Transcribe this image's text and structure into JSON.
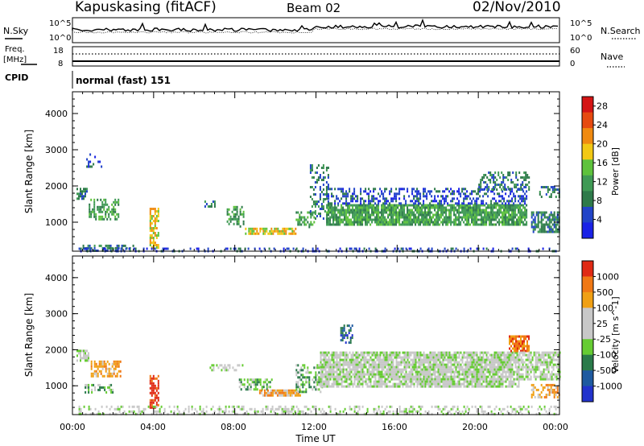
{
  "header": {
    "station": "Kapuskasing (fitACF)",
    "beam": "Beam 02",
    "date": "02/Nov/2010"
  },
  "top_panels": {
    "nsky_label": "N.Sky",
    "nsky_ticks": [
      "10^5",
      "10^0"
    ],
    "nsearch_label": "N.Search",
    "nsearch_ticks": [
      "10^5",
      "10^0"
    ],
    "freq_label": "Freq.",
    "freq_unit": "[MHz]",
    "freq_ticks": [
      "18",
      "8"
    ],
    "nave_label": "Nave",
    "nave_ticks": [
      "60",
      "0"
    ],
    "cpid_label": "CPID",
    "cpid_value": "normal (fast) 151"
  },
  "colors": {
    "power": [
      "#1a22e6",
      "#2244c8",
      "#2e7a4a",
      "#3f9a55",
      "#5ec23c",
      "#f2c814",
      "#f08a10",
      "#e64a10",
      "#d41414"
    ],
    "velocity": [
      "#2233cc",
      "#1e5aa0",
      "#2a7a4a",
      "#66cc33",
      "#c8c8c8",
      "#c8c8c8",
      "#f0a014",
      "#f07814",
      "#e02a14"
    ],
    "ground": "#b4b4b4"
  },
  "chart_data": [
    {
      "type": "heatmap",
      "name": "power",
      "ylabel": "Slant Range [km]",
      "xlabel": "Time UT",
      "xlim": [
        0,
        24
      ],
      "ylim": [
        200,
        4600
      ],
      "x_ticks": [
        "00:00",
        "04:00",
        "08:00",
        "12:00",
        "16:00",
        "20:00",
        "00:00"
      ],
      "y_ticks": [
        "1000",
        "2000",
        "3000",
        "4000"
      ],
      "colorbar_label": "Power [dB]",
      "colorbar_ticks": [
        "4",
        "8",
        "12",
        "16",
        "20",
        "24",
        "28"
      ],
      "colorbar_range": [
        0,
        30
      ],
      "regions": [
        {
          "t": [
            0.5,
            3.0
          ],
          "r": [
            200,
            380
          ],
          "level": 2,
          "density": 0.55
        },
        {
          "t": [
            0.2,
            0.7
          ],
          "r": [
            1650,
            1950
          ],
          "level": 2,
          "density": 0.6
        },
        {
          "t": [
            0.8,
            2.3
          ],
          "r": [
            1050,
            1650
          ],
          "level": 3,
          "density": 0.55
        },
        {
          "t": [
            0.6,
            1.4
          ],
          "r": [
            2500,
            2900
          ],
          "level": 1,
          "density": 0.25
        },
        {
          "t": [
            3.8,
            4.2
          ],
          "r": [
            300,
            1400
          ],
          "level": 5,
          "density": 0.65
        },
        {
          "t": [
            6.5,
            7.0
          ],
          "r": [
            1400,
            1600
          ],
          "level": 2,
          "density": 0.5
        },
        {
          "t": [
            7.6,
            8.4
          ],
          "r": [
            900,
            1450
          ],
          "level": 3,
          "density": 0.5
        },
        {
          "t": [
            8.5,
            11.0
          ],
          "r": [
            650,
            850
          ],
          "level": 5,
          "density": 0.8
        },
        {
          "t": [
            11.0,
            11.9
          ],
          "r": [
            850,
            1300
          ],
          "level": 3,
          "density": 0.55
        },
        {
          "t": [
            11.7,
            12.6
          ],
          "r": [
            1100,
            2600
          ],
          "level": 2,
          "density": 0.35
        },
        {
          "t": [
            12.5,
            22.4
          ],
          "r": [
            950,
            1500
          ],
          "level": 3,
          "density": 0.85
        },
        {
          "t": [
            12.5,
            22.4
          ],
          "r": [
            1500,
            1950
          ],
          "level": 1,
          "density": 0.45
        },
        {
          "t": [
            20.0,
            22.5
          ],
          "r": [
            1900,
            2400
          ],
          "level": 2,
          "density": 0.45
        },
        {
          "t": [
            22.6,
            24.0
          ],
          "r": [
            700,
            1300
          ],
          "level": 2,
          "density": 0.7
        },
        {
          "t": [
            23.0,
            24.0
          ],
          "r": [
            1700,
            2000
          ],
          "level": 2,
          "density": 0.5
        },
        {
          "t": [
            0.3,
            23.8
          ],
          "r": [
            200,
            300
          ],
          "level": 1,
          "density": 0.3
        }
      ]
    },
    {
      "type": "heatmap",
      "name": "velocity",
      "ylabel": "Slant Range [km]",
      "xlabel": "Time UT",
      "xlim": [
        0,
        24
      ],
      "ylim": [
        200,
        4600
      ],
      "x_ticks": [
        "00:00",
        "04:00",
        "08:00",
        "12:00",
        "16:00",
        "20:00",
        "00:00"
      ],
      "y_ticks": [
        "1000",
        "2000",
        "3000",
        "4000"
      ],
      "colorbar_label": "Velocity [m s^-1]",
      "colorbar_ticks": [
        "1000",
        "500",
        "100",
        "25",
        "-25",
        "-100",
        "-500",
        "-1000"
      ],
      "regions": [
        {
          "t": [
            0.2,
            0.8
          ],
          "r": [
            1700,
            2000
          ],
          "level": 4,
          "density": 0.7
        },
        {
          "t": [
            0.9,
            2.4
          ],
          "r": [
            1250,
            1700
          ],
          "level": 6,
          "density": 0.6
        },
        {
          "t": [
            0.6,
            2.0
          ],
          "r": [
            800,
            1050
          ],
          "level": 3,
          "density": 0.45
        },
        {
          "t": [
            3.8,
            4.2
          ],
          "r": [
            400,
            1300
          ],
          "level": 8,
          "density": 0.7
        },
        {
          "t": [
            6.6,
            8.4
          ],
          "r": [
            1400,
            1600
          ],
          "level": 4,
          "density": 0.5
        },
        {
          "t": [
            8.2,
            9.8
          ],
          "r": [
            900,
            1200
          ],
          "level": 3,
          "density": 0.55
        },
        {
          "t": [
            9.2,
            11.2
          ],
          "r": [
            700,
            900
          ],
          "level": 6,
          "density": 0.85
        },
        {
          "t": [
            11.0,
            12.3
          ],
          "r": [
            850,
            1600
          ],
          "level": 3,
          "density": 0.45
        },
        {
          "t": [
            12.2,
            22.0
          ],
          "r": [
            1000,
            1950
          ],
          "level": 4,
          "density": 0.85
        },
        {
          "t": [
            13.2,
            13.8
          ],
          "r": [
            2200,
            2700
          ],
          "level": 1,
          "density": 0.5
        },
        {
          "t": [
            21.5,
            22.5
          ],
          "r": [
            1950,
            2400
          ],
          "level": 7,
          "density": 0.75
        },
        {
          "t": [
            22.0,
            24.0
          ],
          "r": [
            1150,
            1950
          ],
          "level": 4,
          "density": 0.7
        },
        {
          "t": [
            22.6,
            24.0
          ],
          "r": [
            650,
            1050
          ],
          "level": 6,
          "density": 0.55
        },
        {
          "t": [
            0.3,
            23.8
          ],
          "r": [
            200,
            450
          ],
          "level": 4,
          "density": 0.35
        }
      ]
    }
  ]
}
